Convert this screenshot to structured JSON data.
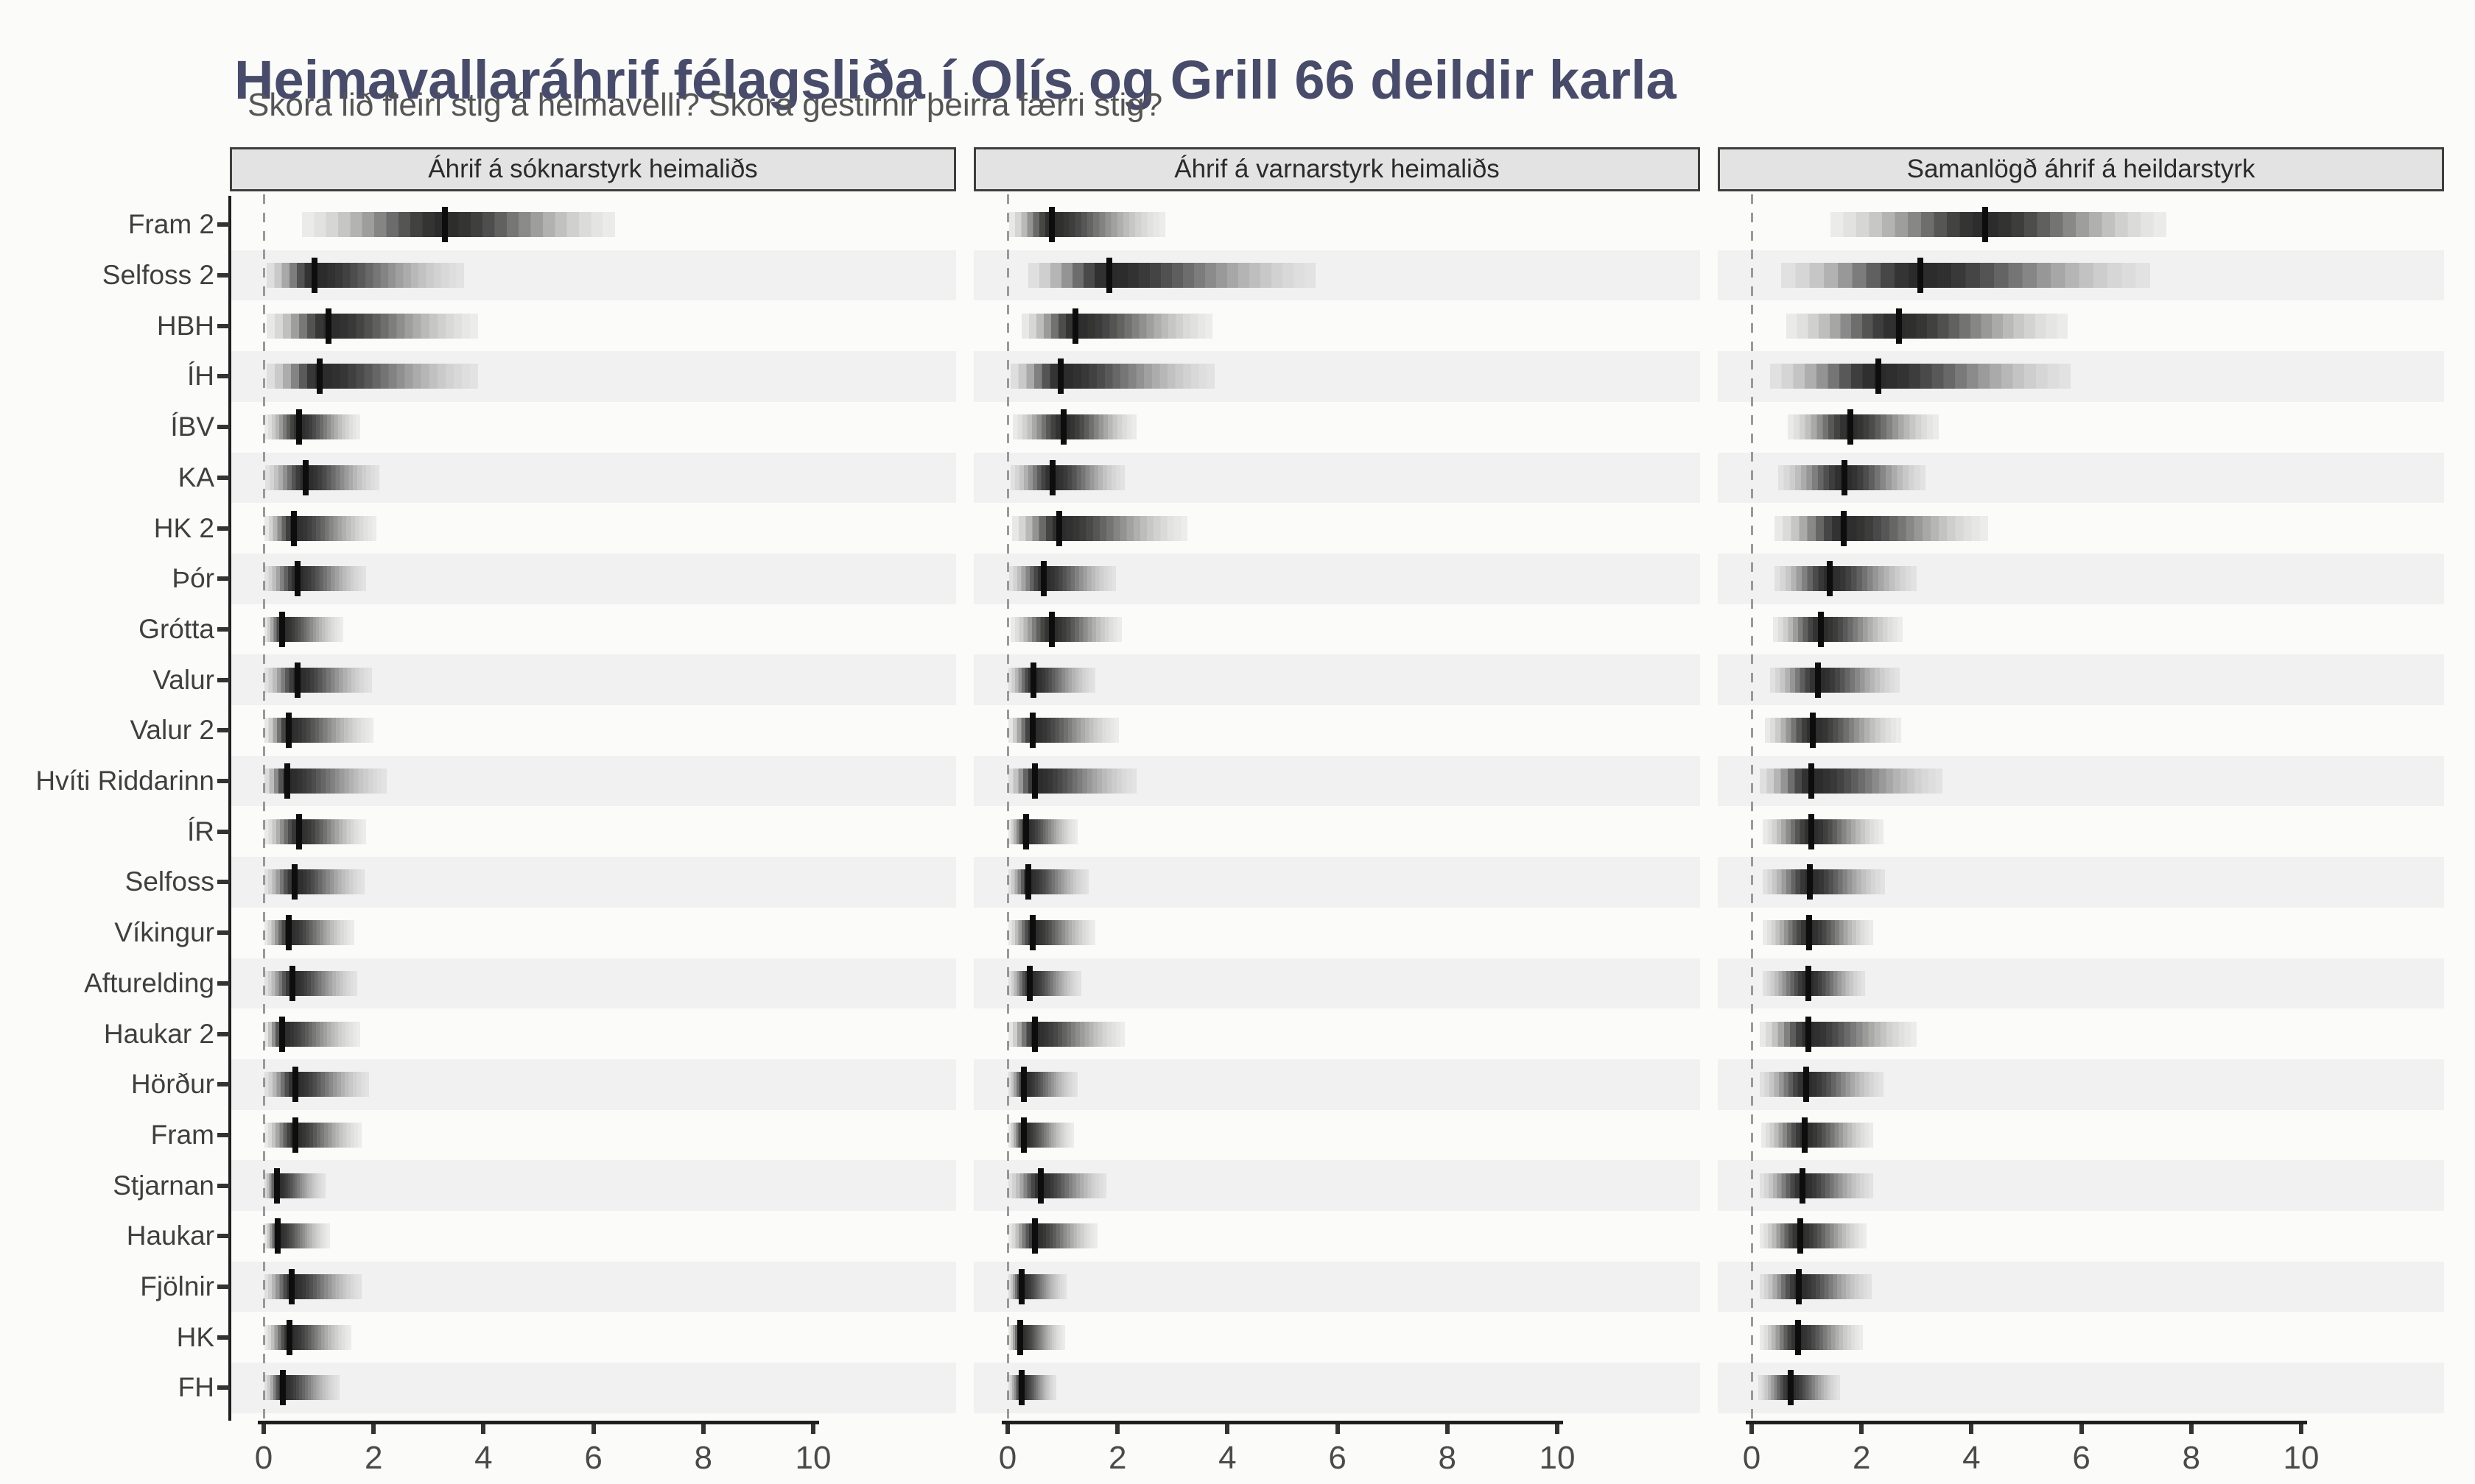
{
  "title": "Heimavallaráhrif félagsliða í Olís og Grill 66 deildir karla",
  "subtitle": "Skora lið fleiri stig á heimavelli? Skora gestirnir þeirra færri stig?",
  "colors": {
    "page_bg": "#FBFBF9",
    "title": "#484C6A",
    "subtitle": "#555555",
    "facet_header_bg": "#E3E3E3",
    "facet_header_border": "#3E3E3E",
    "facet_header_text": "#2B2B2B",
    "row_stripe": "#F1F1F1",
    "zero_line": "#999999",
    "axis_line": "#1F1F1F",
    "tick_stub": "#333333",
    "x_tick_label": "#4A4A4A",
    "y_label": "#3F3F3F",
    "density": "#0A0A0A",
    "median_tick": "#0D0D0D"
  },
  "chart_data": {
    "type": "gradient-interval",
    "orientation": "horizontal",
    "grid": false,
    "x_axis": {
      "min": 0,
      "max": 10,
      "ticks": [
        0,
        2,
        4,
        6,
        8,
        10
      ],
      "zero_reference_line": "dashed"
    },
    "teams": [
      "Fram 2",
      "Selfoss 2",
      "HBH",
      "ÍH",
      "ÍBV",
      "KA",
      "HK 2",
      "Þór",
      "Grótta",
      "Valur",
      "Valur 2",
      "Hvíti Riddarinn",
      "ÍR",
      "Selfoss",
      "Víkingur",
      "Afturelding",
      "Haukar 2",
      "Hörður",
      "Fram",
      "Stjarnan",
      "Haukar",
      "Fjölnir",
      "HK",
      "FH"
    ],
    "facets": [
      {
        "label": "Áhrif á sóknarstyrk heimaliðs",
        "series": [
          {
            "team": "Fram 2",
            "median": 3.3,
            "lo": 0.7,
            "hi": 6.4
          },
          {
            "team": "Selfoss 2",
            "median": 0.92,
            "lo": 0.05,
            "hi": 3.65
          },
          {
            "team": "HBH",
            "median": 1.18,
            "lo": 0.06,
            "hi": 3.9
          },
          {
            "team": "ÍH",
            "median": 1.02,
            "lo": 0.05,
            "hi": 3.9
          },
          {
            "team": "ÍBV",
            "median": 0.65,
            "lo": 0.02,
            "hi": 1.75
          },
          {
            "team": "KA",
            "median": 0.76,
            "lo": 0.03,
            "hi": 2.1
          },
          {
            "team": "HK 2",
            "median": 0.55,
            "lo": 0.02,
            "hi": 2.05
          },
          {
            "team": "Þór",
            "median": 0.61,
            "lo": 0.02,
            "hi": 1.86
          },
          {
            "team": "Grótta",
            "median": 0.34,
            "lo": 0.01,
            "hi": 1.45
          },
          {
            "team": "Valur",
            "median": 0.62,
            "lo": 0.02,
            "hi": 1.97
          },
          {
            "team": "Valur 2",
            "median": 0.45,
            "lo": 0.01,
            "hi": 2.0
          },
          {
            "team": "Hvíti Riddarinn",
            "median": 0.43,
            "lo": 0.01,
            "hi": 2.24
          },
          {
            "team": "ÍR",
            "median": 0.64,
            "lo": 0.02,
            "hi": 1.86
          },
          {
            "team": "Selfoss",
            "median": 0.56,
            "lo": 0.02,
            "hi": 1.83
          },
          {
            "team": "Víkingur",
            "median": 0.46,
            "lo": 0.01,
            "hi": 1.65
          },
          {
            "team": "Afturelding",
            "median": 0.52,
            "lo": 0.01,
            "hi": 1.7
          },
          {
            "team": "Haukar 2",
            "median": 0.34,
            "lo": 0.01,
            "hi": 1.75
          },
          {
            "team": "Hörður",
            "median": 0.57,
            "lo": 0.02,
            "hi": 1.92
          },
          {
            "team": "Fram",
            "median": 0.57,
            "lo": 0.02,
            "hi": 1.78
          },
          {
            "team": "Stjarnan",
            "median": 0.24,
            "lo": 0.01,
            "hi": 1.13
          },
          {
            "team": "Haukar",
            "median": 0.26,
            "lo": 0.01,
            "hi": 1.21
          },
          {
            "team": "Fjölnir",
            "median": 0.51,
            "lo": 0.01,
            "hi": 1.78
          },
          {
            "team": "HK",
            "median": 0.47,
            "lo": 0.01,
            "hi": 1.59
          },
          {
            "team": "FH",
            "median": 0.35,
            "lo": 0.01,
            "hi": 1.38
          }
        ]
      },
      {
        "label": "Áhrif á varnarstyrk heimaliðs",
        "series": [
          {
            "team": "Fram 2",
            "median": 0.8,
            "lo": 0.03,
            "hi": 2.87
          },
          {
            "team": "Selfoss 2",
            "median": 1.85,
            "lo": 0.38,
            "hi": 5.6
          },
          {
            "team": "HBH",
            "median": 1.23,
            "lo": 0.25,
            "hi": 3.72
          },
          {
            "team": "ÍH",
            "median": 0.96,
            "lo": 0.05,
            "hi": 3.77
          },
          {
            "team": "ÍBV",
            "median": 1.02,
            "lo": 0.1,
            "hi": 2.34
          },
          {
            "team": "KA",
            "median": 0.82,
            "lo": 0.05,
            "hi": 2.13
          },
          {
            "team": "HK 2",
            "median": 0.94,
            "lo": 0.08,
            "hi": 3.27
          },
          {
            "team": "Þór",
            "median": 0.66,
            "lo": 0.03,
            "hi": 1.97
          },
          {
            "team": "Grótta",
            "median": 0.8,
            "lo": 0.05,
            "hi": 2.08
          },
          {
            "team": "Valur",
            "median": 0.47,
            "lo": 0.02,
            "hi": 1.6
          },
          {
            "team": "Valur 2",
            "median": 0.46,
            "lo": 0.02,
            "hi": 2.02
          },
          {
            "team": "Hvíti Riddarinn",
            "median": 0.5,
            "lo": 0.02,
            "hi": 2.34
          },
          {
            "team": "ÍR",
            "median": 0.33,
            "lo": 0.01,
            "hi": 1.28
          },
          {
            "team": "Selfoss",
            "median": 0.38,
            "lo": 0.01,
            "hi": 1.47
          },
          {
            "team": "Víkingur",
            "median": 0.46,
            "lo": 0.01,
            "hi": 1.6
          },
          {
            "team": "Afturelding",
            "median": 0.4,
            "lo": 0.01,
            "hi": 1.34
          },
          {
            "team": "Haukar 2",
            "median": 0.49,
            "lo": 0.02,
            "hi": 2.13
          },
          {
            "team": "Hörður",
            "median": 0.3,
            "lo": 0.01,
            "hi": 1.28
          },
          {
            "team": "Fram",
            "median": 0.29,
            "lo": 0.01,
            "hi": 1.2
          },
          {
            "team": "Stjarnan",
            "median": 0.6,
            "lo": 0.02,
            "hi": 1.79
          },
          {
            "team": "Haukar",
            "median": 0.5,
            "lo": 0.02,
            "hi": 1.63
          },
          {
            "team": "Fjölnir",
            "median": 0.25,
            "lo": 0.01,
            "hi": 1.07
          },
          {
            "team": "HK",
            "median": 0.23,
            "lo": 0.01,
            "hi": 1.04
          },
          {
            "team": "FH",
            "median": 0.25,
            "lo": 0.01,
            "hi": 0.89
          }
        ]
      },
      {
        "label": "Samanlögð áhrif á heildarstyrk",
        "series": [
          {
            "team": "Fram 2",
            "median": 4.25,
            "lo": 1.43,
            "hi": 7.55
          },
          {
            "team": "Selfoss 2",
            "median": 3.07,
            "lo": 0.54,
            "hi": 7.25
          },
          {
            "team": "HBH",
            "median": 2.68,
            "lo": 0.63,
            "hi": 5.75
          },
          {
            "team": "ÍH",
            "median": 2.3,
            "lo": 0.33,
            "hi": 5.8
          },
          {
            "team": "ÍBV",
            "median": 1.79,
            "lo": 0.66,
            "hi": 3.41
          },
          {
            "team": "KA",
            "median": 1.69,
            "lo": 0.48,
            "hi": 3.17
          },
          {
            "team": "HK 2",
            "median": 1.67,
            "lo": 0.42,
            "hi": 4.3
          },
          {
            "team": "Þór",
            "median": 1.42,
            "lo": 0.42,
            "hi": 3.0
          },
          {
            "team": "Grótta",
            "median": 1.26,
            "lo": 0.39,
            "hi": 2.75
          },
          {
            "team": "Valur",
            "median": 1.21,
            "lo": 0.33,
            "hi": 2.7
          },
          {
            "team": "Valur 2",
            "median": 1.11,
            "lo": 0.24,
            "hi": 2.72
          },
          {
            "team": "Hvíti Riddarinn",
            "median": 1.09,
            "lo": 0.15,
            "hi": 3.47
          },
          {
            "team": "ÍR",
            "median": 1.09,
            "lo": 0.2,
            "hi": 2.4
          },
          {
            "team": "Selfoss",
            "median": 1.06,
            "lo": 0.2,
            "hi": 2.42
          },
          {
            "team": "Víkingur",
            "median": 1.05,
            "lo": 0.2,
            "hi": 2.21
          },
          {
            "team": "Afturelding",
            "median": 1.03,
            "lo": 0.2,
            "hi": 2.06
          },
          {
            "team": "Haukar 2",
            "median": 1.03,
            "lo": 0.15,
            "hi": 3.0
          },
          {
            "team": "Hörður",
            "median": 0.99,
            "lo": 0.15,
            "hi": 2.4
          },
          {
            "team": "Fram",
            "median": 0.97,
            "lo": 0.18,
            "hi": 2.21
          },
          {
            "team": "Stjarnan",
            "median": 0.93,
            "lo": 0.15,
            "hi": 2.21
          },
          {
            "team": "Haukar",
            "median": 0.88,
            "lo": 0.15,
            "hi": 2.09
          },
          {
            "team": "Fjölnir",
            "median": 0.86,
            "lo": 0.15,
            "hi": 2.18
          },
          {
            "team": "HK",
            "median": 0.84,
            "lo": 0.15,
            "hi": 2.03
          },
          {
            "team": "FH",
            "median": 0.71,
            "lo": 0.12,
            "hi": 1.61
          }
        ]
      }
    ]
  }
}
